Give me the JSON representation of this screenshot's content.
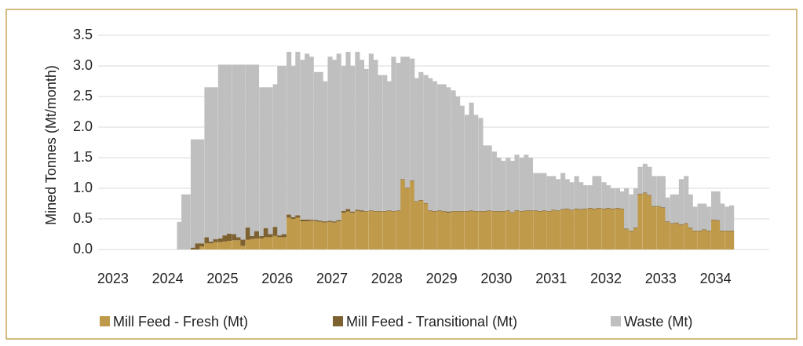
{
  "chart_data": {
    "type": "stacked_bar",
    "y_label": "Mined Tonnes (Mt/month)",
    "ylim": [
      0,
      3.5
    ],
    "yticks": [
      {
        "value": 0,
        "label": "0.0"
      },
      0.5,
      {
        "value": 1,
        "label": "1.0"
      },
      1.5,
      {
        "value": 2,
        "label": "2.0"
      },
      2.5,
      {
        "value": 3,
        "label": "3.0"
      },
      3.5
    ],
    "xlim": [
      2022.73,
      2034.98
    ],
    "xticks": [
      2023,
      2024,
      2025,
      2026,
      2027,
      2028,
      2029,
      2030,
      2031,
      2032,
      2033,
      2034
    ],
    "grid": true,
    "legend": "bottom",
    "x": [
      2024.17,
      2024.25,
      2024.33,
      2024.42,
      2024.5,
      2024.58,
      2024.67,
      2024.75,
      2024.83,
      2024.92,
      2025.0,
      2025.08,
      2025.17,
      2025.25,
      2025.33,
      2025.42,
      2025.5,
      2025.58,
      2025.67,
      2025.75,
      2025.83,
      2025.92,
      2026.0,
      2026.08,
      2026.17,
      2026.25,
      2026.33,
      2026.42,
      2026.5,
      2026.58,
      2026.67,
      2026.75,
      2026.83,
      2026.92,
      2027.0,
      2027.08,
      2027.17,
      2027.25,
      2027.33,
      2027.42,
      2027.5,
      2027.58,
      2027.67,
      2027.75,
      2027.83,
      2027.92,
      2028.0,
      2028.08,
      2028.17,
      2028.25,
      2028.33,
      2028.42,
      2028.5,
      2028.58,
      2028.67,
      2028.75,
      2028.83,
      2028.92,
      2029.0,
      2029.08,
      2029.17,
      2029.25,
      2029.33,
      2029.42,
      2029.5,
      2029.58,
      2029.67,
      2029.75,
      2029.83,
      2029.92,
      2030.0,
      2030.08,
      2030.17,
      2030.25,
      2030.33,
      2030.42,
      2030.5,
      2030.58,
      2030.67,
      2030.75,
      2030.83,
      2030.92,
      2031.0,
      2031.08,
      2031.17,
      2031.25,
      2031.33,
      2031.42,
      2031.5,
      2031.58,
      2031.67,
      2031.75,
      2031.83,
      2031.92,
      2032.0,
      2032.08,
      2032.17,
      2032.25,
      2032.33,
      2032.42,
      2032.5,
      2032.58,
      2032.67,
      2032.75,
      2032.83,
      2032.92,
      2033.0,
      2033.08,
      2033.17,
      2033.25,
      2033.33,
      2033.42,
      2033.5,
      2033.58,
      2033.67,
      2033.75,
      2033.83,
      2033.92,
      2034.0,
      2034.08,
      2034.17,
      2034.25
    ],
    "series": [
      {
        "name": "Mill Feed - Fresh (Mt)",
        "color": "#bf9a4a",
        "values": [
          0,
          0,
          0,
          0,
          0,
          0.05,
          0.1,
          0.1,
          0.12,
          0.12,
          0.13,
          0.14,
          0.15,
          0.15,
          0.06,
          0.16,
          0.17,
          0.18,
          0.18,
          0.2,
          0.2,
          0.22,
          0.2,
          0.2,
          0.52,
          0.5,
          0.52,
          0.46,
          0.46,
          0.47,
          0.46,
          0.45,
          0.44,
          0.45,
          0.44,
          0.46,
          0.6,
          0.62,
          0.6,
          0.63,
          0.62,
          0.62,
          0.63,
          0.62,
          0.62,
          0.62,
          0.63,
          0.62,
          0.63,
          1.14,
          1.0,
          1.12,
          0.78,
          0.8,
          0.75,
          0.63,
          0.62,
          0.63,
          0.62,
          0.6,
          0.62,
          0.62,
          0.62,
          0.62,
          0.63,
          0.62,
          0.62,
          0.62,
          0.63,
          0.62,
          0.62,
          0.62,
          0.63,
          0.6,
          0.63,
          0.62,
          0.63,
          0.63,
          0.63,
          0.62,
          0.63,
          0.62,
          0.64,
          0.63,
          0.65,
          0.66,
          0.64,
          0.66,
          0.65,
          0.66,
          0.67,
          0.66,
          0.67,
          0.66,
          0.67,
          0.66,
          0.67,
          0.66,
          0.33,
          0.3,
          0.35,
          0.9,
          0.92,
          0.88,
          0.7,
          0.7,
          0.68,
          0.45,
          0.42,
          0.43,
          0.4,
          0.42,
          0.35,
          0.3,
          0.3,
          0.32,
          0.3,
          0.48,
          0.47,
          0.3,
          0.3,
          0.3
        ]
      },
      {
        "name": "Mill Feed - Transitional (Mt)",
        "color": "#7d6131",
        "values": [
          0,
          0,
          0,
          0.03,
          0.1,
          0.05,
          0.1,
          0.03,
          0.05,
          0.06,
          0.1,
          0.12,
          0.1,
          0.05,
          0.1,
          0.2,
          0.05,
          0.12,
          0.04,
          0.15,
          0.05,
          0.15,
          0.03,
          0.05,
          0.05,
          0.03,
          0.04,
          0.03,
          0.03,
          0.02,
          0.02,
          0.02,
          0.02,
          0.02,
          0.02,
          0.02,
          0.03,
          0.04,
          0.02,
          0.02,
          0.02,
          0.01,
          0.01,
          0.01,
          0.01,
          0.01,
          0.01,
          0.01,
          0.01,
          0.01,
          0.01,
          0.01,
          0.01,
          0.01,
          0.01,
          0.01,
          0.01,
          0.01,
          0.01,
          0.02,
          0.01,
          0.01,
          0.01,
          0.01,
          0.01,
          0.01,
          0.01,
          0.01,
          0.01,
          0.01,
          0.01,
          0.01,
          0.01,
          0.01,
          0.01,
          0.01,
          0.01,
          0.01,
          0.01,
          0.01,
          0.01,
          0.01,
          0.01,
          0.01,
          0.01,
          0.01,
          0.01,
          0.01,
          0.01,
          0.01,
          0.01,
          0.01,
          0.01,
          0.01,
          0.01,
          0.01,
          0.01,
          0.01,
          0.01,
          0.01,
          0.01,
          0.01,
          0.01,
          0.01,
          0.01,
          0.01,
          0.01,
          0.01,
          0.01,
          0.01,
          0.01,
          0.01,
          0.01,
          0.01,
          0.01,
          0.01,
          0.01,
          0.01,
          0.01,
          0.01,
          0.01,
          0.01
        ]
      },
      {
        "name": "Waste (Mt)",
        "color": "#bfbfbf",
        "values": [
          0.45,
          0.9,
          0.9,
          1.77,
          1.7,
          1.7,
          2.45,
          2.52,
          2.48,
          2.84,
          2.79,
          2.76,
          2.77,
          2.82,
          2.86,
          2.66,
          2.8,
          2.72,
          2.43,
          2.3,
          2.4,
          2.33,
          2.77,
          2.75,
          2.66,
          2.47,
          2.67,
          2.61,
          2.71,
          2.66,
          2.42,
          2.43,
          2.29,
          2.68,
          2.64,
          2.72,
          2.37,
          2.57,
          2.38,
          2.58,
          2.46,
          2.32,
          2.56,
          2.47,
          2.22,
          2.22,
          2.11,
          2.52,
          2.41,
          2.0,
          2.14,
          1.99,
          2.01,
          2.09,
          2.09,
          2.16,
          2.12,
          2.06,
          2.07,
          2.03,
          1.97,
          1.87,
          1.72,
          1.57,
          1.76,
          1.57,
          1.52,
          1.07,
          1.06,
          0.97,
          0.87,
          0.82,
          0.86,
          0.84,
          0.91,
          0.87,
          0.91,
          0.86,
          0.61,
          0.62,
          0.61,
          0.57,
          0.55,
          0.51,
          0.59,
          0.48,
          0.45,
          0.53,
          0.44,
          0.38,
          0.37,
          0.53,
          0.52,
          0.43,
          0.37,
          0.33,
          0.32,
          0.28,
          0.66,
          0.59,
          0.64,
          0.44,
          0.47,
          0.46,
          0.49,
          0.49,
          0.51,
          0.39,
          0.47,
          0.46,
          0.74,
          0.77,
          0.54,
          0.39,
          0.44,
          0.42,
          0.39,
          0.46,
          0.47,
          0.44,
          0.39,
          0.41
        ]
      }
    ]
  }
}
